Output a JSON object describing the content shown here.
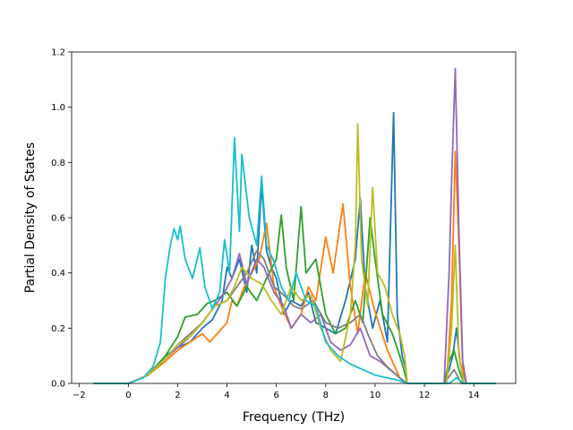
{
  "chart_data": {
    "type": "line",
    "title": "",
    "xlabel": "Frequency (THz)",
    "ylabel": "Partial Density of States",
    "xlim": [
      -2.3,
      15.7
    ],
    "ylim": [
      0.0,
      1.2
    ],
    "xticks": [
      -2,
      0,
      2,
      4,
      6,
      8,
      10,
      12,
      14
    ],
    "yticks": [
      0.0,
      0.2,
      0.4,
      0.6,
      0.8,
      1.0,
      1.2
    ],
    "xtick_labels": [
      "−2",
      "0",
      "2",
      "4",
      "6",
      "8",
      "10",
      "12",
      "14"
    ],
    "ytick_labels": [
      "0.0",
      "0.2",
      "0.4",
      "0.6",
      "0.8",
      "1.0",
      "1.2"
    ],
    "grid": false,
    "legend": "none",
    "series": [
      {
        "color": "#1f77b4",
        "points": [
          [
            -1.4,
            0
          ],
          [
            0,
            0
          ],
          [
            0.8,
            0.03
          ],
          [
            1.5,
            0.1
          ],
          [
            2,
            0.13
          ],
          [
            2.5,
            0.15
          ],
          [
            3,
            0.2
          ],
          [
            3.4,
            0.23
          ],
          [
            3.8,
            0.3
          ],
          [
            4,
            0.42
          ],
          [
            4.2,
            0.38
          ],
          [
            4.5,
            0.45
          ],
          [
            4.8,
            0.33
          ],
          [
            5,
            0.5
          ],
          [
            5.2,
            0.4
          ],
          [
            5.4,
            0.72
          ],
          [
            5.6,
            0.48
          ],
          [
            5.8,
            0.42
          ],
          [
            6,
            0.38
          ],
          [
            6.3,
            0.25
          ],
          [
            6.6,
            0.3
          ],
          [
            7,
            0.28
          ],
          [
            7.3,
            0.33
          ],
          [
            7.6,
            0.22
          ],
          [
            8,
            0.2
          ],
          [
            8.4,
            0.18
          ],
          [
            8.8,
            0.3
          ],
          [
            9.2,
            0.45
          ],
          [
            9.4,
            0.67
          ],
          [
            9.6,
            0.35
          ],
          [
            9.9,
            0.2
          ],
          [
            10.2,
            0.3
          ],
          [
            10.5,
            0.15
          ],
          [
            10.75,
            0.98
          ],
          [
            10.9,
            0.25
          ],
          [
            11.1,
            0.1
          ],
          [
            11.25,
            0.05
          ],
          [
            11.3,
            0
          ],
          [
            12.8,
            0
          ],
          [
            13,
            0.05
          ],
          [
            13.15,
            0.1
          ],
          [
            13.3,
            0.2
          ],
          [
            13.45,
            0.07
          ],
          [
            13.7,
            0
          ],
          [
            14.9,
            0
          ]
        ]
      },
      {
        "color": "#ff7f0e",
        "points": [
          [
            -1.4,
            0
          ],
          [
            0,
            0
          ],
          [
            0.8,
            0.03
          ],
          [
            1.5,
            0.08
          ],
          [
            2,
            0.12
          ],
          [
            2.5,
            0.15
          ],
          [
            3,
            0.18
          ],
          [
            3.3,
            0.15
          ],
          [
            3.6,
            0.18
          ],
          [
            4,
            0.22
          ],
          [
            4.2,
            0.3
          ],
          [
            4.4,
            0.28
          ],
          [
            4.7,
            0.35
          ],
          [
            5,
            0.4
          ],
          [
            5.3,
            0.45
          ],
          [
            5.6,
            0.58
          ],
          [
            5.9,
            0.35
          ],
          [
            6.2,
            0.28
          ],
          [
            6.6,
            0.2
          ],
          [
            7,
            0.25
          ],
          [
            7.3,
            0.35
          ],
          [
            7.6,
            0.3
          ],
          [
            8,
            0.53
          ],
          [
            8.3,
            0.4
          ],
          [
            8.7,
            0.65
          ],
          [
            9,
            0.35
          ],
          [
            9.3,
            0.18
          ],
          [
            9.6,
            0.4
          ],
          [
            10,
            0.26
          ],
          [
            10.5,
            0.12
          ],
          [
            10.8,
            0.06
          ],
          [
            11,
            0.02
          ],
          [
            11.3,
            0
          ],
          [
            12.9,
            0
          ],
          [
            13.1,
            0.3
          ],
          [
            13.25,
            0.84
          ],
          [
            13.4,
            0.5
          ],
          [
            13.55,
            0.05
          ],
          [
            13.7,
            0
          ],
          [
            14.9,
            0
          ]
        ]
      },
      {
        "color": "#2ca02c",
        "points": [
          [
            -1.4,
            0
          ],
          [
            0,
            0
          ],
          [
            0.8,
            0.03
          ],
          [
            1.5,
            0.1
          ],
          [
            2,
            0.17
          ],
          [
            2.3,
            0.24
          ],
          [
            2.8,
            0.25
          ],
          [
            3.2,
            0.29
          ],
          [
            3.5,
            0.3
          ],
          [
            4,
            0.33
          ],
          [
            4.4,
            0.28
          ],
          [
            4.8,
            0.35
          ],
          [
            5.2,
            0.3
          ],
          [
            5.6,
            0.38
          ],
          [
            6,
            0.45
          ],
          [
            6.2,
            0.61
          ],
          [
            6.4,
            0.42
          ],
          [
            6.7,
            0.3
          ],
          [
            7,
            0.64
          ],
          [
            7.2,
            0.4
          ],
          [
            7.6,
            0.45
          ],
          [
            8,
            0.25
          ],
          [
            8.4,
            0.18
          ],
          [
            8.8,
            0.2
          ],
          [
            9.2,
            0.3
          ],
          [
            9.5,
            0.22
          ],
          [
            9.8,
            0.6
          ],
          [
            10,
            0.45
          ],
          [
            10.3,
            0.25
          ],
          [
            10.7,
            0.18
          ],
          [
            11,
            0.1
          ],
          [
            11.2,
            0.04
          ],
          [
            11.3,
            0
          ],
          [
            12.8,
            0
          ],
          [
            13,
            0.08
          ],
          [
            13.2,
            0.12
          ],
          [
            13.4,
            0.05
          ],
          [
            13.6,
            0
          ],
          [
            14.9,
            0
          ]
        ]
      },
      {
        "color": "#9467bd",
        "points": [
          [
            -1.4,
            0
          ],
          [
            0,
            0
          ],
          [
            0.8,
            0.03
          ],
          [
            1.5,
            0.09
          ],
          [
            2,
            0.13
          ],
          [
            2.5,
            0.17
          ],
          [
            3,
            0.22
          ],
          [
            3.5,
            0.28
          ],
          [
            3.9,
            0.33
          ],
          [
            4.2,
            0.38
          ],
          [
            4.5,
            0.47
          ],
          [
            4.8,
            0.36
          ],
          [
            5.2,
            0.45
          ],
          [
            5.5,
            0.42
          ],
          [
            5.9,
            0.33
          ],
          [
            6.3,
            0.28
          ],
          [
            6.6,
            0.2
          ],
          [
            7,
            0.25
          ],
          [
            7.4,
            0.22
          ],
          [
            7.8,
            0.25
          ],
          [
            8.2,
            0.15
          ],
          [
            8.6,
            0.12
          ],
          [
            9,
            0.14
          ],
          [
            9.4,
            0.2
          ],
          [
            9.8,
            0.1
          ],
          [
            10.2,
            0.08
          ],
          [
            10.6,
            0.05
          ],
          [
            11,
            0.02
          ],
          [
            11.3,
            0
          ],
          [
            12.8,
            0
          ],
          [
            13,
            0.4
          ],
          [
            13.1,
            0.73
          ],
          [
            13.25,
            1.14
          ],
          [
            13.4,
            0.55
          ],
          [
            13.55,
            0.08
          ],
          [
            13.7,
            0
          ],
          [
            14.9,
            0
          ]
        ]
      },
      {
        "color": "#7f7f7f",
        "points": [
          [
            -1.4,
            0
          ],
          [
            0,
            0
          ],
          [
            0.8,
            0.03
          ],
          [
            1.5,
            0.09
          ],
          [
            2,
            0.14
          ],
          [
            2.5,
            0.18
          ],
          [
            3,
            0.22
          ],
          [
            3.5,
            0.28
          ],
          [
            4,
            0.3
          ],
          [
            4.4,
            0.35
          ],
          [
            4.8,
            0.4
          ],
          [
            5.2,
            0.48
          ],
          [
            5.5,
            0.45
          ],
          [
            5.9,
            0.35
          ],
          [
            6.3,
            0.32
          ],
          [
            6.7,
            0.28
          ],
          [
            7,
            0.27
          ],
          [
            7.5,
            0.3
          ],
          [
            8,
            0.22
          ],
          [
            8.5,
            0.2
          ],
          [
            9,
            0.22
          ],
          [
            9.4,
            0.25
          ],
          [
            9.7,
            0.18
          ],
          [
            10.1,
            0.1
          ],
          [
            10.5,
            0.06
          ],
          [
            11,
            0.02
          ],
          [
            11.3,
            0
          ],
          [
            12.8,
            0
          ],
          [
            13.2,
            0.05
          ],
          [
            13.5,
            0
          ],
          [
            14.9,
            0
          ]
        ]
      },
      {
        "color": "#bcbd22",
        "points": [
          [
            -1.4,
            0
          ],
          [
            0,
            0
          ],
          [
            0.8,
            0.03
          ],
          [
            1.5,
            0.09
          ],
          [
            2,
            0.14
          ],
          [
            2.5,
            0.17
          ],
          [
            3,
            0.22
          ],
          [
            3.5,
            0.28
          ],
          [
            4,
            0.3
          ],
          [
            4.3,
            0.35
          ],
          [
            4.6,
            0.42
          ],
          [
            5,
            0.38
          ],
          [
            5.4,
            0.36
          ],
          [
            5.8,
            0.3
          ],
          [
            6.2,
            0.25
          ],
          [
            6.6,
            0.35
          ],
          [
            7,
            0.3
          ],
          [
            7.4,
            0.32
          ],
          [
            7.8,
            0.2
          ],
          [
            8.2,
            0.12
          ],
          [
            8.6,
            0.08
          ],
          [
            9,
            0.25
          ],
          [
            9.2,
            0.5
          ],
          [
            9.3,
            0.94
          ],
          [
            9.45,
            0.45
          ],
          [
            9.7,
            0.28
          ],
          [
            9.9,
            0.71
          ],
          [
            10.1,
            0.4
          ],
          [
            10.4,
            0.35
          ],
          [
            10.7,
            0.25
          ],
          [
            11,
            0.18
          ],
          [
            11.2,
            0.1
          ],
          [
            11.3,
            0
          ],
          [
            12.9,
            0
          ],
          [
            13.1,
            0.2
          ],
          [
            13.25,
            0.5
          ],
          [
            13.4,
            0.1
          ],
          [
            13.6,
            0
          ],
          [
            14.9,
            0
          ]
        ]
      },
      {
        "color": "#17becf",
        "points": [
          [
            -1.4,
            0
          ],
          [
            0,
            0
          ],
          [
            0.6,
            0.02
          ],
          [
            1,
            0.06
          ],
          [
            1.3,
            0.15
          ],
          [
            1.5,
            0.38
          ],
          [
            1.7,
            0.5
          ],
          [
            1.85,
            0.56
          ],
          [
            2,
            0.52
          ],
          [
            2.1,
            0.57
          ],
          [
            2.3,
            0.45
          ],
          [
            2.6,
            0.38
          ],
          [
            2.9,
            0.49
          ],
          [
            3.1,
            0.35
          ],
          [
            3.4,
            0.27
          ],
          [
            3.7,
            0.33
          ],
          [
            3.9,
            0.52
          ],
          [
            4.1,
            0.4
          ],
          [
            4.3,
            0.89
          ],
          [
            4.5,
            0.55
          ],
          [
            4.6,
            0.83
          ],
          [
            4.9,
            0.6
          ],
          [
            5.2,
            0.5
          ],
          [
            5.4,
            0.75
          ],
          [
            5.6,
            0.5
          ],
          [
            5.9,
            0.44
          ],
          [
            6.2,
            0.35
          ],
          [
            6.5,
            0.3
          ],
          [
            6.8,
            0.4
          ],
          [
            7.2,
            0.3
          ],
          [
            7.6,
            0.28
          ],
          [
            8,
            0.15
          ],
          [
            8.5,
            0.1
          ],
          [
            9,
            0.07
          ],
          [
            9.5,
            0.05
          ],
          [
            10,
            0.03
          ],
          [
            10.5,
            0.02
          ],
          [
            11,
            0.01
          ],
          [
            11.3,
            0
          ],
          [
            13,
            0
          ],
          [
            13.3,
            0.02
          ],
          [
            13.6,
            0
          ],
          [
            14.9,
            0
          ]
        ]
      }
    ]
  }
}
